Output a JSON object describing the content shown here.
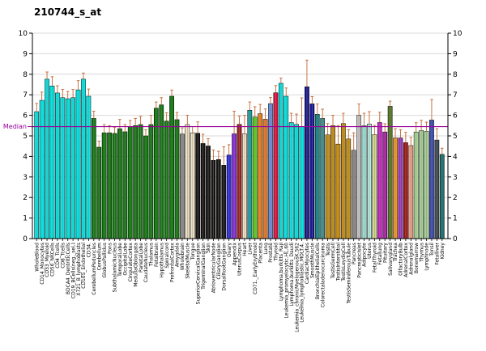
{
  "title": "210744_s_at",
  "median": {
    "label": "Median",
    "value": 5.45,
    "color": "#990099"
  },
  "y_axis": {
    "min": 0,
    "max": 10,
    "tick_step": 1,
    "tick_labels": [
      "0",
      "1",
      "2",
      "3",
      "4",
      "5",
      "6",
      "7",
      "8",
      "9",
      "10"
    ]
  },
  "styles": {
    "background": "#FFFFFF",
    "grid": "#D9D9D9",
    "axis": "#000000",
    "error_bar": "#C06632",
    "bar_outline": "#000000",
    "bar_stripe": "#8E7E70"
  },
  "chart_data": {
    "type": "bar",
    "title": "210744_s_at",
    "xlabel": "",
    "ylabel": "",
    "ylim": [
      0,
      10
    ],
    "grid": true,
    "legend": "none",
    "median_line": 5.45,
    "categories": [
      "WholeBlood",
      "CD14_Monocytes",
      "CD33_Myeloid",
      "CD56_NKCells",
      "CD4_Tcells",
      "CD8_Tcells",
      "BDCA4_DentriticCells",
      "CD19_BCells(neg._sel.)",
      "X721_B_lymphoblasts",
      "CD105_Endothelial",
      "CD34.",
      "CerebellumPeduncles",
      "Cerebellum",
      "GlobusPallidus",
      "Pons",
      "SubthalamicNucleus",
      "TemporalLobe",
      "OccipitalLobe",
      "CingulateCortex",
      "MedullaOblongata",
      "ParietalLobe",
      "CaudateNucleus",
      "Thalamus",
      "Fetalbrain",
      "Hypothalamus",
      "Spinalcord",
      "PrefrontalCortex",
      "Amygdala",
      "Wholebrain",
      "SkeletalMuscle",
      "Tongue",
      "SuperiorCervicalGanglion",
      "TrigeminalGanglion",
      "Skin",
      "AtrioventricularNode",
      "CiliaryGanglion",
      "DorsalRootGanglion",
      "Ovary",
      "Appendix",
      "UterusCorpus",
      "Heart",
      "Liver",
      "CD71._EarlyErythroid",
      "Placenta",
      "Lung",
      "Prostate",
      "Thyroid",
      "Lymphoma.burkitts_Raji",
      "Leukemia_promyelocytic.HL.60",
      "Lymphoma.burkitts_Daudi",
      "Leukemia_chronicMyelogenousK.562",
      "Leukemia_lymphoblastic.MOLT.4.",
      "CardiacMyocytes",
      "SmoothMuscle",
      "BronchialEpithelialCells",
      "Colorectaladenocarcinoma",
      "Testis",
      "TestisGermCell",
      "TestisInterstitial",
      "TestisLeydigCell",
      "TestisSeminiferousTubule",
      "Pancreas",
      "PancreaticIslet",
      "Adipocyte",
      "Uterus",
      "FetalThyroid",
      "Fetallung",
      "Pituitary",
      "Salivarygland",
      "Trachea",
      "OlfactoryBulb",
      "AdrenalCortex",
      "Adrenalgland",
      "Bonemarrow",
      "Thymus",
      "Lymphnode",
      "Tonsil",
      "Fetalliver",
      "Kidney"
    ],
    "values": [
      6.18,
      6.73,
      7.76,
      7.43,
      7.09,
      6.86,
      6.81,
      6.86,
      7.24,
      7.76,
      6.93,
      5.85,
      4.45,
      5.15,
      5.15,
      5.12,
      5.35,
      5.2,
      5.45,
      5.5,
      5.55,
      5.0,
      5.55,
      6.35,
      6.51,
      5.72,
      6.93,
      5.79,
      5.09,
      5.55,
      5.15,
      5.13,
      4.63,
      4.51,
      3.81,
      3.85,
      3.57,
      4.07,
      5.1,
      5.56,
      5.1,
      6.25,
      5.92,
      6.08,
      5.81,
      6.57,
      7.1,
      7.56,
      6.93,
      5.65,
      5.56,
      5.45,
      7.39,
      6.56,
      6.05,
      5.85,
      5.05,
      5.5,
      4.6,
      5.6,
      4.85,
      4.3,
      6.0,
      5.5,
      5.58,
      5.06,
      5.65,
      5.19,
      6.44,
      4.9,
      4.9,
      4.67,
      4.53,
      5.19,
      5.26,
      5.22,
      5.77,
      4.8,
      4.1
    ],
    "errors": [
      0.4,
      0.4,
      0.35,
      0.45,
      0.35,
      0.4,
      0.35,
      0.4,
      0.45,
      0.3,
      0.35,
      0.35,
      0.3,
      0.4,
      0.35,
      0.3,
      0.45,
      0.35,
      0.3,
      0.35,
      0.4,
      0.3,
      0.45,
      0.3,
      0.35,
      0.4,
      0.3,
      0.35,
      0.3,
      0.45,
      0.3,
      0.55,
      0.45,
      0.35,
      0.5,
      0.4,
      0.9,
      0.5,
      1.1,
      0.4,
      0.9,
      0.4,
      0.5,
      0.45,
      0.5,
      0.3,
      0.35,
      0.25,
      0.4,
      0.45,
      0.5,
      1.4,
      1.3,
      0.35,
      0.5,
      0.45,
      0.55,
      0.5,
      0.9,
      0.5,
      0.45,
      0.85,
      0.55,
      0.6,
      0.6,
      0.45,
      0.5,
      0.4,
      0.25,
      0.45,
      0.4,
      0.5,
      0.4,
      0.45,
      0.5,
      0.45,
      1.0,
      0.55,
      0.3
    ],
    "colors": [
      "#00E8E8",
      "#00E8E8",
      "#00E8E8",
      "#00E8E8",
      "#00E8E8",
      "#00E8E8",
      "#00E8E8",
      "#00E8E8",
      "#00E8E8",
      "#00E8E8",
      "#00E8E8",
      "#117A11",
      "#117A11",
      "#117A11",
      "#117A11",
      "#117A11",
      "#117A11",
      "#117A11",
      "#117A11",
      "#117A11",
      "#117A11",
      "#117A11",
      "#117A11",
      "#117A11",
      "#117A11",
      "#117A11",
      "#117A11",
      "#117A11",
      "#8C8C8C",
      "#F2E6C8",
      "#F2E6C8",
      "#141414",
      "#141414",
      "#141414",
      "#141414",
      "#141414",
      "#141414",
      "#2A2AE8",
      "#8A2BE2",
      "#A02020",
      "#F2E6C8",
      "#20A0A0",
      "#55D519",
      "#F28222",
      "#E87722",
      "#6A8FE0",
      "#E01040",
      "#00E8E8",
      "#00E8E8",
      "#00E8E8",
      "#00E8E8",
      "#00E8E8",
      "#151599",
      "#151599",
      "#108888",
      "#3D8F8F",
      "#C89014",
      "#C89014",
      "#C89014",
      "#C89014",
      "#C89014",
      "#8A8A8A",
      "#C9C9C9",
      "#9FE8DC",
      "#B4EDE2",
      "#D6DC8C",
      "#CC22CC",
      "#AD1FAD",
      "#55772B",
      "#F79722",
      "#9933CC",
      "#A51515",
      "#F2A285",
      "#A9D69B",
      "#A9D69B",
      "#A9D69B",
      "#3A4CB4",
      "#3C4A58",
      "#1E6E6E"
    ]
  }
}
